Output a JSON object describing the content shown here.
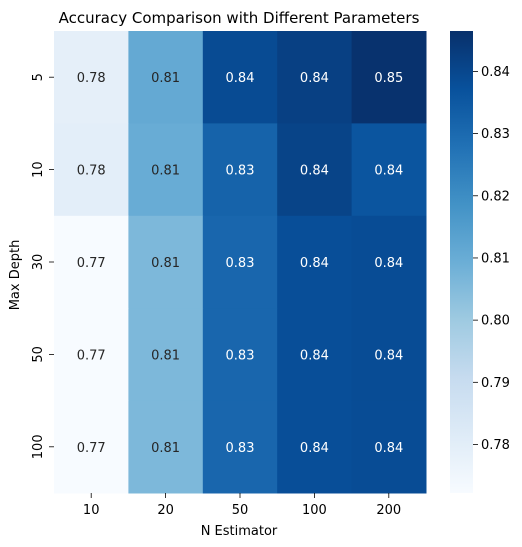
{
  "chart_data": {
    "type": "heatmap",
    "title": "Accuracy Comparison with Different Parameters",
    "xlabel": "N Estimator",
    "ylabel": "Max Depth",
    "x_categories": [
      "10",
      "20",
      "50",
      "100",
      "200"
    ],
    "y_categories": [
      "5",
      "10",
      "30",
      "50",
      "100"
    ],
    "values": [
      [
        0.779,
        0.811,
        0.839,
        0.842,
        0.846
      ],
      [
        0.7795,
        0.81,
        0.832,
        0.841,
        0.836
      ],
      [
        0.7722,
        0.806,
        0.831,
        0.838,
        0.8385
      ],
      [
        0.7722,
        0.806,
        0.831,
        0.838,
        0.8385
      ],
      [
        0.7722,
        0.806,
        0.831,
        0.838,
        0.8385
      ]
    ],
    "labels": [
      [
        "0.78",
        "0.81",
        "0.84",
        "0.84",
        "0.85"
      ],
      [
        "0.78",
        "0.81",
        "0.83",
        "0.84",
        "0.84"
      ],
      [
        "0.77",
        "0.81",
        "0.83",
        "0.84",
        "0.84"
      ],
      [
        "0.77",
        "0.81",
        "0.83",
        "0.84",
        "0.84"
      ],
      [
        "0.77",
        "0.81",
        "0.83",
        "0.84",
        "0.84"
      ]
    ],
    "colorbar": {
      "colormap": "Blues",
      "range": [
        0.7722,
        0.8465
      ],
      "ticks": [
        "0.78",
        "0.79",
        "0.80",
        "0.81",
        "0.82",
        "0.83",
        "0.84"
      ]
    }
  }
}
